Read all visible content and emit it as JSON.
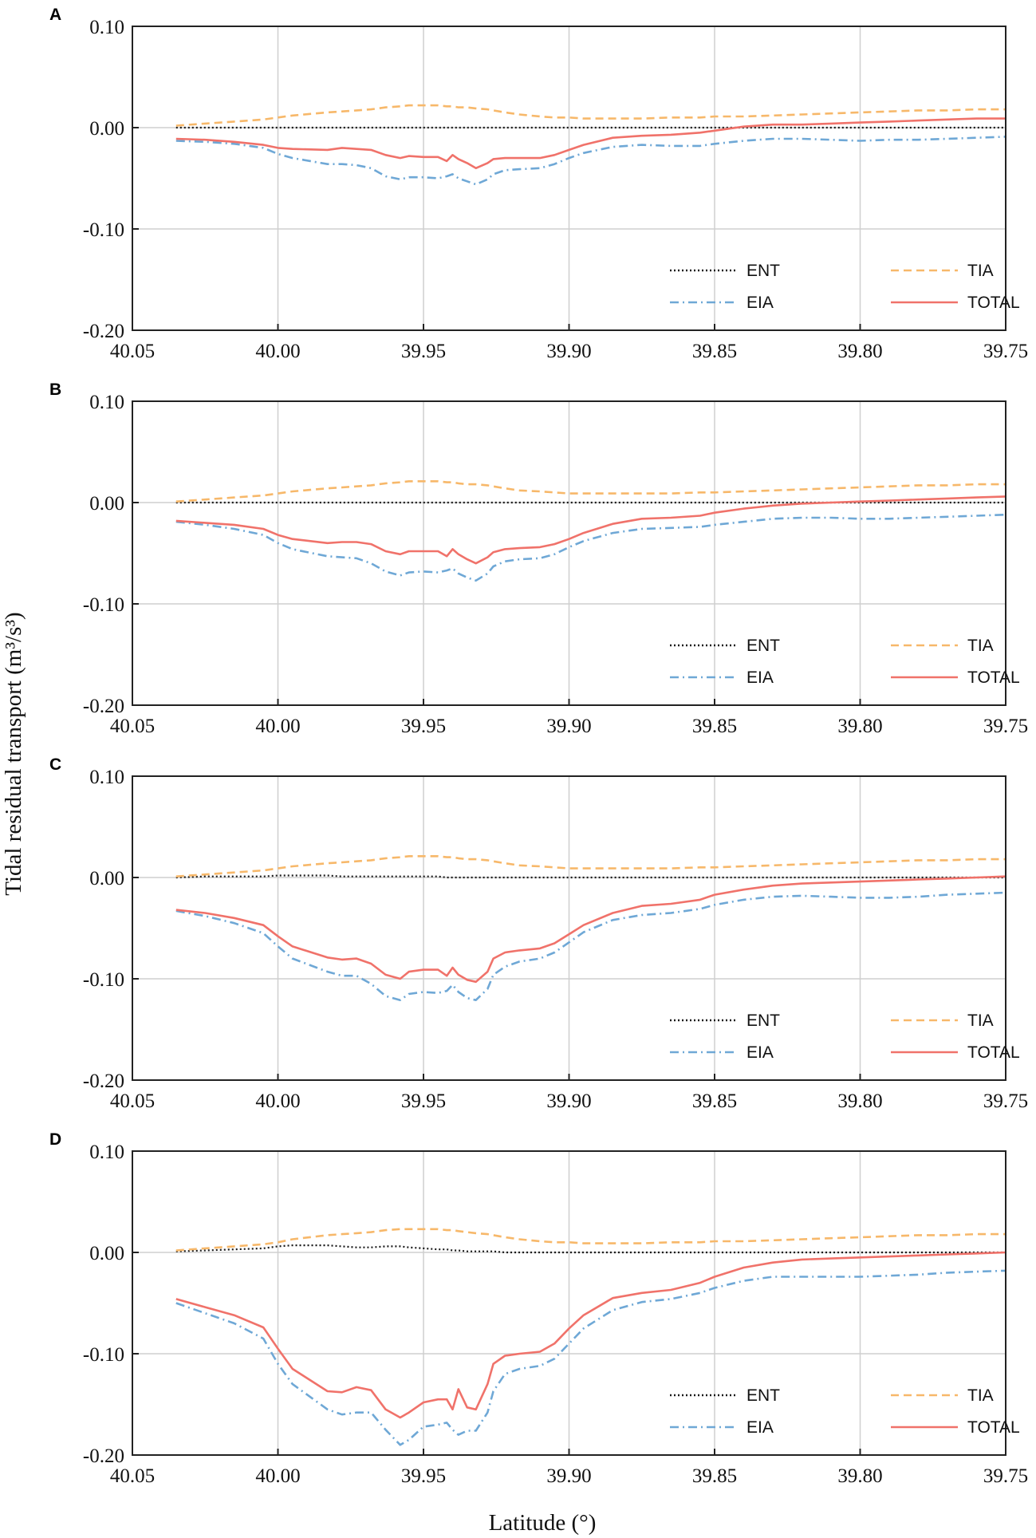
{
  "chart_data": {
    "type": "line",
    "ylabel": "Tidal residual transport (m³/s³)",
    "xlabel": "Latitude (°)",
    "xlim": [
      40.05,
      39.75
    ],
    "ylim": [
      -0.2,
      0.1
    ],
    "xticks": [
      "40.05",
      "40.00",
      "39.95",
      "39.90",
      "39.85",
      "39.80",
      "39.75"
    ],
    "yticks": [
      "0.10",
      "0.00",
      "-0.10",
      "-0.20"
    ],
    "grid": true,
    "legend_position": "lower-right",
    "styles": {
      "ENT": {
        "color": "#1a1a1a",
        "dash": "2,3"
      },
      "TIA": {
        "color": "#f7b86a",
        "dash": "10,6"
      },
      "EIA": {
        "color": "#6fa8d6",
        "dash": "11,5,2,5"
      },
      "TOTAL": {
        "color": "#f0726a",
        "dash": ""
      }
    },
    "legend_order": [
      "ENT",
      "TIA",
      "EIA",
      "TOTAL"
    ],
    "x": [
      40.035,
      40.025,
      40.015,
      40.005,
      40.0,
      39.995,
      39.983,
      39.978,
      39.973,
      39.968,
      39.963,
      39.958,
      39.955,
      39.95,
      39.945,
      39.942,
      39.94,
      39.938,
      39.935,
      39.932,
      39.928,
      39.926,
      39.922,
      39.917,
      39.91,
      39.905,
      39.9,
      39.895,
      39.885,
      39.875,
      39.865,
      39.855,
      39.85,
      39.84,
      39.83,
      39.82,
      39.81,
      39.8,
      39.79,
      39.78,
      39.77,
      39.76,
      39.75
    ],
    "panels": [
      {
        "label": "A",
        "series": [
          {
            "name": "ENT",
            "values": [
              0,
              0,
              0,
              0,
              0,
              0,
              0,
              0,
              0,
              0,
              0,
              0,
              0,
              0,
              0,
              0,
              0,
              0,
              0,
              0,
              0,
              0,
              0,
              0,
              0,
              0,
              0,
              0,
              0,
              0,
              0,
              0,
              0,
              0,
              0,
              0,
              0,
              0,
              0,
              0,
              0,
              0,
              0
            ]
          },
          {
            "name": "TIA",
            "values": [
              0.002,
              0.004,
              0.006,
              0.008,
              0.01,
              0.012,
              0.015,
              0.016,
              0.017,
              0.018,
              0.02,
              0.021,
              0.022,
              0.022,
              0.022,
              0.021,
              0.021,
              0.02,
              0.02,
              0.019,
              0.018,
              0.017,
              0.015,
              0.013,
              0.011,
              0.01,
              0.01,
              0.009,
              0.009,
              0.009,
              0.01,
              0.01,
              0.011,
              0.011,
              0.012,
              0.013,
              0.014,
              0.015,
              0.016,
              0.017,
              0.017,
              0.018,
              0.018
            ]
          },
          {
            "name": "EIA",
            "values": [
              -0.013,
              -0.014,
              -0.016,
              -0.02,
              -0.026,
              -0.03,
              -0.036,
              -0.036,
              -0.037,
              -0.04,
              -0.048,
              -0.051,
              -0.049,
              -0.049,
              -0.05,
              -0.048,
              -0.046,
              -0.05,
              -0.053,
              -0.056,
              -0.051,
              -0.046,
              -0.042,
              -0.041,
              -0.04,
              -0.036,
              -0.03,
              -0.025,
              -0.019,
              -0.017,
              -0.018,
              -0.018,
              -0.016,
              -0.013,
              -0.011,
              -0.011,
              -0.012,
              -0.013,
              -0.012,
              -0.012,
              -0.011,
              -0.01,
              -0.009
            ]
          },
          {
            "name": "TOTAL",
            "values": [
              -0.011,
              -0.012,
              -0.014,
              -0.017,
              -0.02,
              -0.021,
              -0.022,
              -0.02,
              -0.021,
              -0.022,
              -0.027,
              -0.03,
              -0.028,
              -0.029,
              -0.029,
              -0.033,
              -0.027,
              -0.031,
              -0.035,
              -0.04,
              -0.035,
              -0.031,
              -0.03,
              -0.03,
              -0.03,
              -0.027,
              -0.022,
              -0.017,
              -0.01,
              -0.008,
              -0.007,
              -0.005,
              -0.003,
              0.001,
              0.003,
              0.003,
              0.004,
              0.005,
              0.006,
              0.007,
              0.008,
              0.009,
              0.009
            ]
          }
        ]
      },
      {
        "label": "B",
        "series": [
          {
            "name": "ENT",
            "values": [
              0,
              0,
              0,
              0,
              0,
              0,
              0,
              0,
              0,
              0,
              0,
              0,
              0,
              0,
              0,
              0,
              0,
              0,
              0,
              0,
              0,
              0,
              0,
              0,
              0,
              0,
              0,
              0,
              0,
              0,
              0,
              0,
              0,
              0,
              0,
              0,
              0,
              0,
              0,
              0,
              0,
              0,
              0
            ]
          },
          {
            "name": "TIA",
            "values": [
              0.001,
              0.003,
              0.005,
              0.007,
              0.009,
              0.011,
              0.014,
              0.015,
              0.016,
              0.017,
              0.019,
              0.02,
              0.021,
              0.021,
              0.021,
              0.02,
              0.02,
              0.019,
              0.018,
              0.018,
              0.017,
              0.016,
              0.014,
              0.012,
              0.011,
              0.01,
              0.009,
              0.009,
              0.009,
              0.009,
              0.009,
              0.01,
              0.01,
              0.011,
              0.012,
              0.013,
              0.014,
              0.015,
              0.016,
              0.017,
              0.017,
              0.018,
              0.018
            ]
          },
          {
            "name": "EIA",
            "values": [
              -0.019,
              -0.022,
              -0.026,
              -0.032,
              -0.04,
              -0.046,
              -0.053,
              -0.054,
              -0.055,
              -0.06,
              -0.068,
              -0.072,
              -0.069,
              -0.068,
              -0.069,
              -0.067,
              -0.065,
              -0.07,
              -0.074,
              -0.077,
              -0.07,
              -0.063,
              -0.058,
              -0.056,
              -0.055,
              -0.051,
              -0.044,
              -0.038,
              -0.03,
              -0.026,
              -0.025,
              -0.024,
              -0.022,
              -0.019,
              -0.016,
              -0.015,
              -0.015,
              -0.016,
              -0.016,
              -0.015,
              -0.014,
              -0.013,
              -0.012
            ]
          },
          {
            "name": "TOTAL",
            "values": [
              -0.018,
              -0.02,
              -0.022,
              -0.026,
              -0.032,
              -0.036,
              -0.04,
              -0.039,
              -0.039,
              -0.041,
              -0.048,
              -0.051,
              -0.048,
              -0.048,
              -0.048,
              -0.053,
              -0.046,
              -0.051,
              -0.056,
              -0.06,
              -0.054,
              -0.049,
              -0.046,
              -0.045,
              -0.044,
              -0.041,
              -0.036,
              -0.03,
              -0.021,
              -0.016,
              -0.015,
              -0.013,
              -0.01,
              -0.006,
              -0.003,
              -0.001,
              0.0,
              0.001,
              0.002,
              0.003,
              0.004,
              0.005,
              0.006
            ]
          }
        ]
      },
      {
        "label": "C",
        "series": [
          {
            "name": "ENT",
            "values": [
              0.0,
              0.001,
              0.001,
              0.001,
              0.002,
              0.002,
              0.002,
              0.001,
              0.001,
              0.001,
              0.001,
              0.001,
              0.001,
              0.001,
              0.001,
              0.0,
              0.0,
              0.0,
              0.0,
              0.0,
              0.0,
              0.0,
              0.0,
              0.0,
              0.0,
              0.0,
              0.0,
              0.0,
              0.0,
              0.0,
              0.0,
              0.0,
              0.0,
              0.0,
              0.0,
              0.0,
              0.0,
              0.0,
              0.0,
              0.0,
              0.0,
              0.0,
              0.0
            ]
          },
          {
            "name": "TIA",
            "values": [
              0.001,
              0.003,
              0.005,
              0.007,
              0.009,
              0.011,
              0.014,
              0.015,
              0.016,
              0.017,
              0.019,
              0.02,
              0.021,
              0.021,
              0.021,
              0.02,
              0.02,
              0.019,
              0.018,
              0.018,
              0.017,
              0.016,
              0.014,
              0.012,
              0.011,
              0.01,
              0.009,
              0.009,
              0.009,
              0.009,
              0.009,
              0.01,
              0.01,
              0.011,
              0.012,
              0.013,
              0.014,
              0.015,
              0.016,
              0.017,
              0.017,
              0.018,
              0.018
            ]
          },
          {
            "name": "EIA",
            "values": [
              -0.033,
              -0.038,
              -0.045,
              -0.055,
              -0.068,
              -0.08,
              -0.093,
              -0.097,
              -0.097,
              -0.105,
              -0.117,
              -0.121,
              -0.115,
              -0.113,
              -0.114,
              -0.112,
              -0.106,
              -0.113,
              -0.119,
              -0.121,
              -0.11,
              -0.096,
              -0.088,
              -0.083,
              -0.08,
              -0.074,
              -0.064,
              -0.054,
              -0.042,
              -0.037,
              -0.035,
              -0.031,
              -0.027,
              -0.022,
              -0.019,
              -0.018,
              -0.019,
              -0.02,
              -0.02,
              -0.019,
              -0.017,
              -0.016,
              -0.015
            ]
          },
          {
            "name": "TOTAL",
            "values": [
              -0.032,
              -0.035,
              -0.04,
              -0.047,
              -0.058,
              -0.068,
              -0.079,
              -0.081,
              -0.08,
              -0.085,
              -0.096,
              -0.1,
              -0.093,
              -0.091,
              -0.091,
              -0.097,
              -0.089,
              -0.096,
              -0.101,
              -0.103,
              -0.093,
              -0.08,
              -0.074,
              -0.072,
              -0.07,
              -0.065,
              -0.056,
              -0.047,
              -0.035,
              -0.028,
              -0.026,
              -0.022,
              -0.017,
              -0.012,
              -0.008,
              -0.006,
              -0.005,
              -0.004,
              -0.003,
              -0.002,
              -0.001,
              0.0,
              0.001
            ]
          }
        ]
      },
      {
        "label": "D",
        "series": [
          {
            "name": "ENT",
            "values": [
              0.001,
              0.002,
              0.003,
              0.004,
              0.006,
              0.007,
              0.007,
              0.006,
              0.005,
              0.005,
              0.006,
              0.006,
              0.005,
              0.004,
              0.003,
              0.003,
              0.002,
              0.002,
              0.001,
              0.001,
              0.001,
              0.001,
              0.0,
              0.0,
              0.0,
              0.0,
              0.0,
              0.0,
              0.0,
              0.0,
              0.0,
              0.0,
              0.0,
              0.0,
              0.0,
              0.0,
              0.0,
              0.0,
              0.0,
              0.0,
              0.0,
              0.0,
              0.0
            ]
          },
          {
            "name": "TIA",
            "values": [
              0.002,
              0.004,
              0.006,
              0.008,
              0.01,
              0.013,
              0.017,
              0.018,
              0.019,
              0.02,
              0.022,
              0.023,
              0.023,
              0.023,
              0.023,
              0.022,
              0.022,
              0.021,
              0.02,
              0.019,
              0.018,
              0.017,
              0.015,
              0.013,
              0.011,
              0.01,
              0.01,
              0.009,
              0.009,
              0.009,
              0.01,
              0.01,
              0.011,
              0.011,
              0.012,
              0.013,
              0.014,
              0.015,
              0.016,
              0.017,
              0.017,
              0.018,
              0.018
            ]
          },
          {
            "name": "EIA",
            "values": [
              -0.05,
              -0.06,
              -0.07,
              -0.085,
              -0.11,
              -0.13,
              -0.155,
              -0.16,
              -0.158,
              -0.158,
              -0.175,
              -0.19,
              -0.185,
              -0.172,
              -0.17,
              -0.168,
              -0.175,
              -0.18,
              -0.176,
              -0.176,
              -0.158,
              -0.137,
              -0.12,
              -0.115,
              -0.112,
              -0.105,
              -0.09,
              -0.075,
              -0.057,
              -0.049,
              -0.046,
              -0.04,
              -0.035,
              -0.028,
              -0.024,
              -0.024,
              -0.024,
              -0.024,
              -0.023,
              -0.022,
              -0.02,
              -0.019,
              -0.018
            ]
          },
          {
            "name": "TOTAL",
            "values": [
              -0.046,
              -0.054,
              -0.062,
              -0.074,
              -0.095,
              -0.115,
              -0.137,
              -0.138,
              -0.133,
              -0.136,
              -0.155,
              -0.163,
              -0.158,
              -0.148,
              -0.145,
              -0.145,
              -0.155,
              -0.135,
              -0.153,
              -0.155,
              -0.13,
              -0.11,
              -0.102,
              -0.1,
              -0.098,
              -0.09,
              -0.075,
              -0.062,
              -0.045,
              -0.04,
              -0.037,
              -0.03,
              -0.024,
              -0.015,
              -0.01,
              -0.007,
              -0.006,
              -0.005,
              -0.004,
              -0.003,
              -0.002,
              -0.001,
              0.0
            ]
          }
        ]
      }
    ]
  }
}
